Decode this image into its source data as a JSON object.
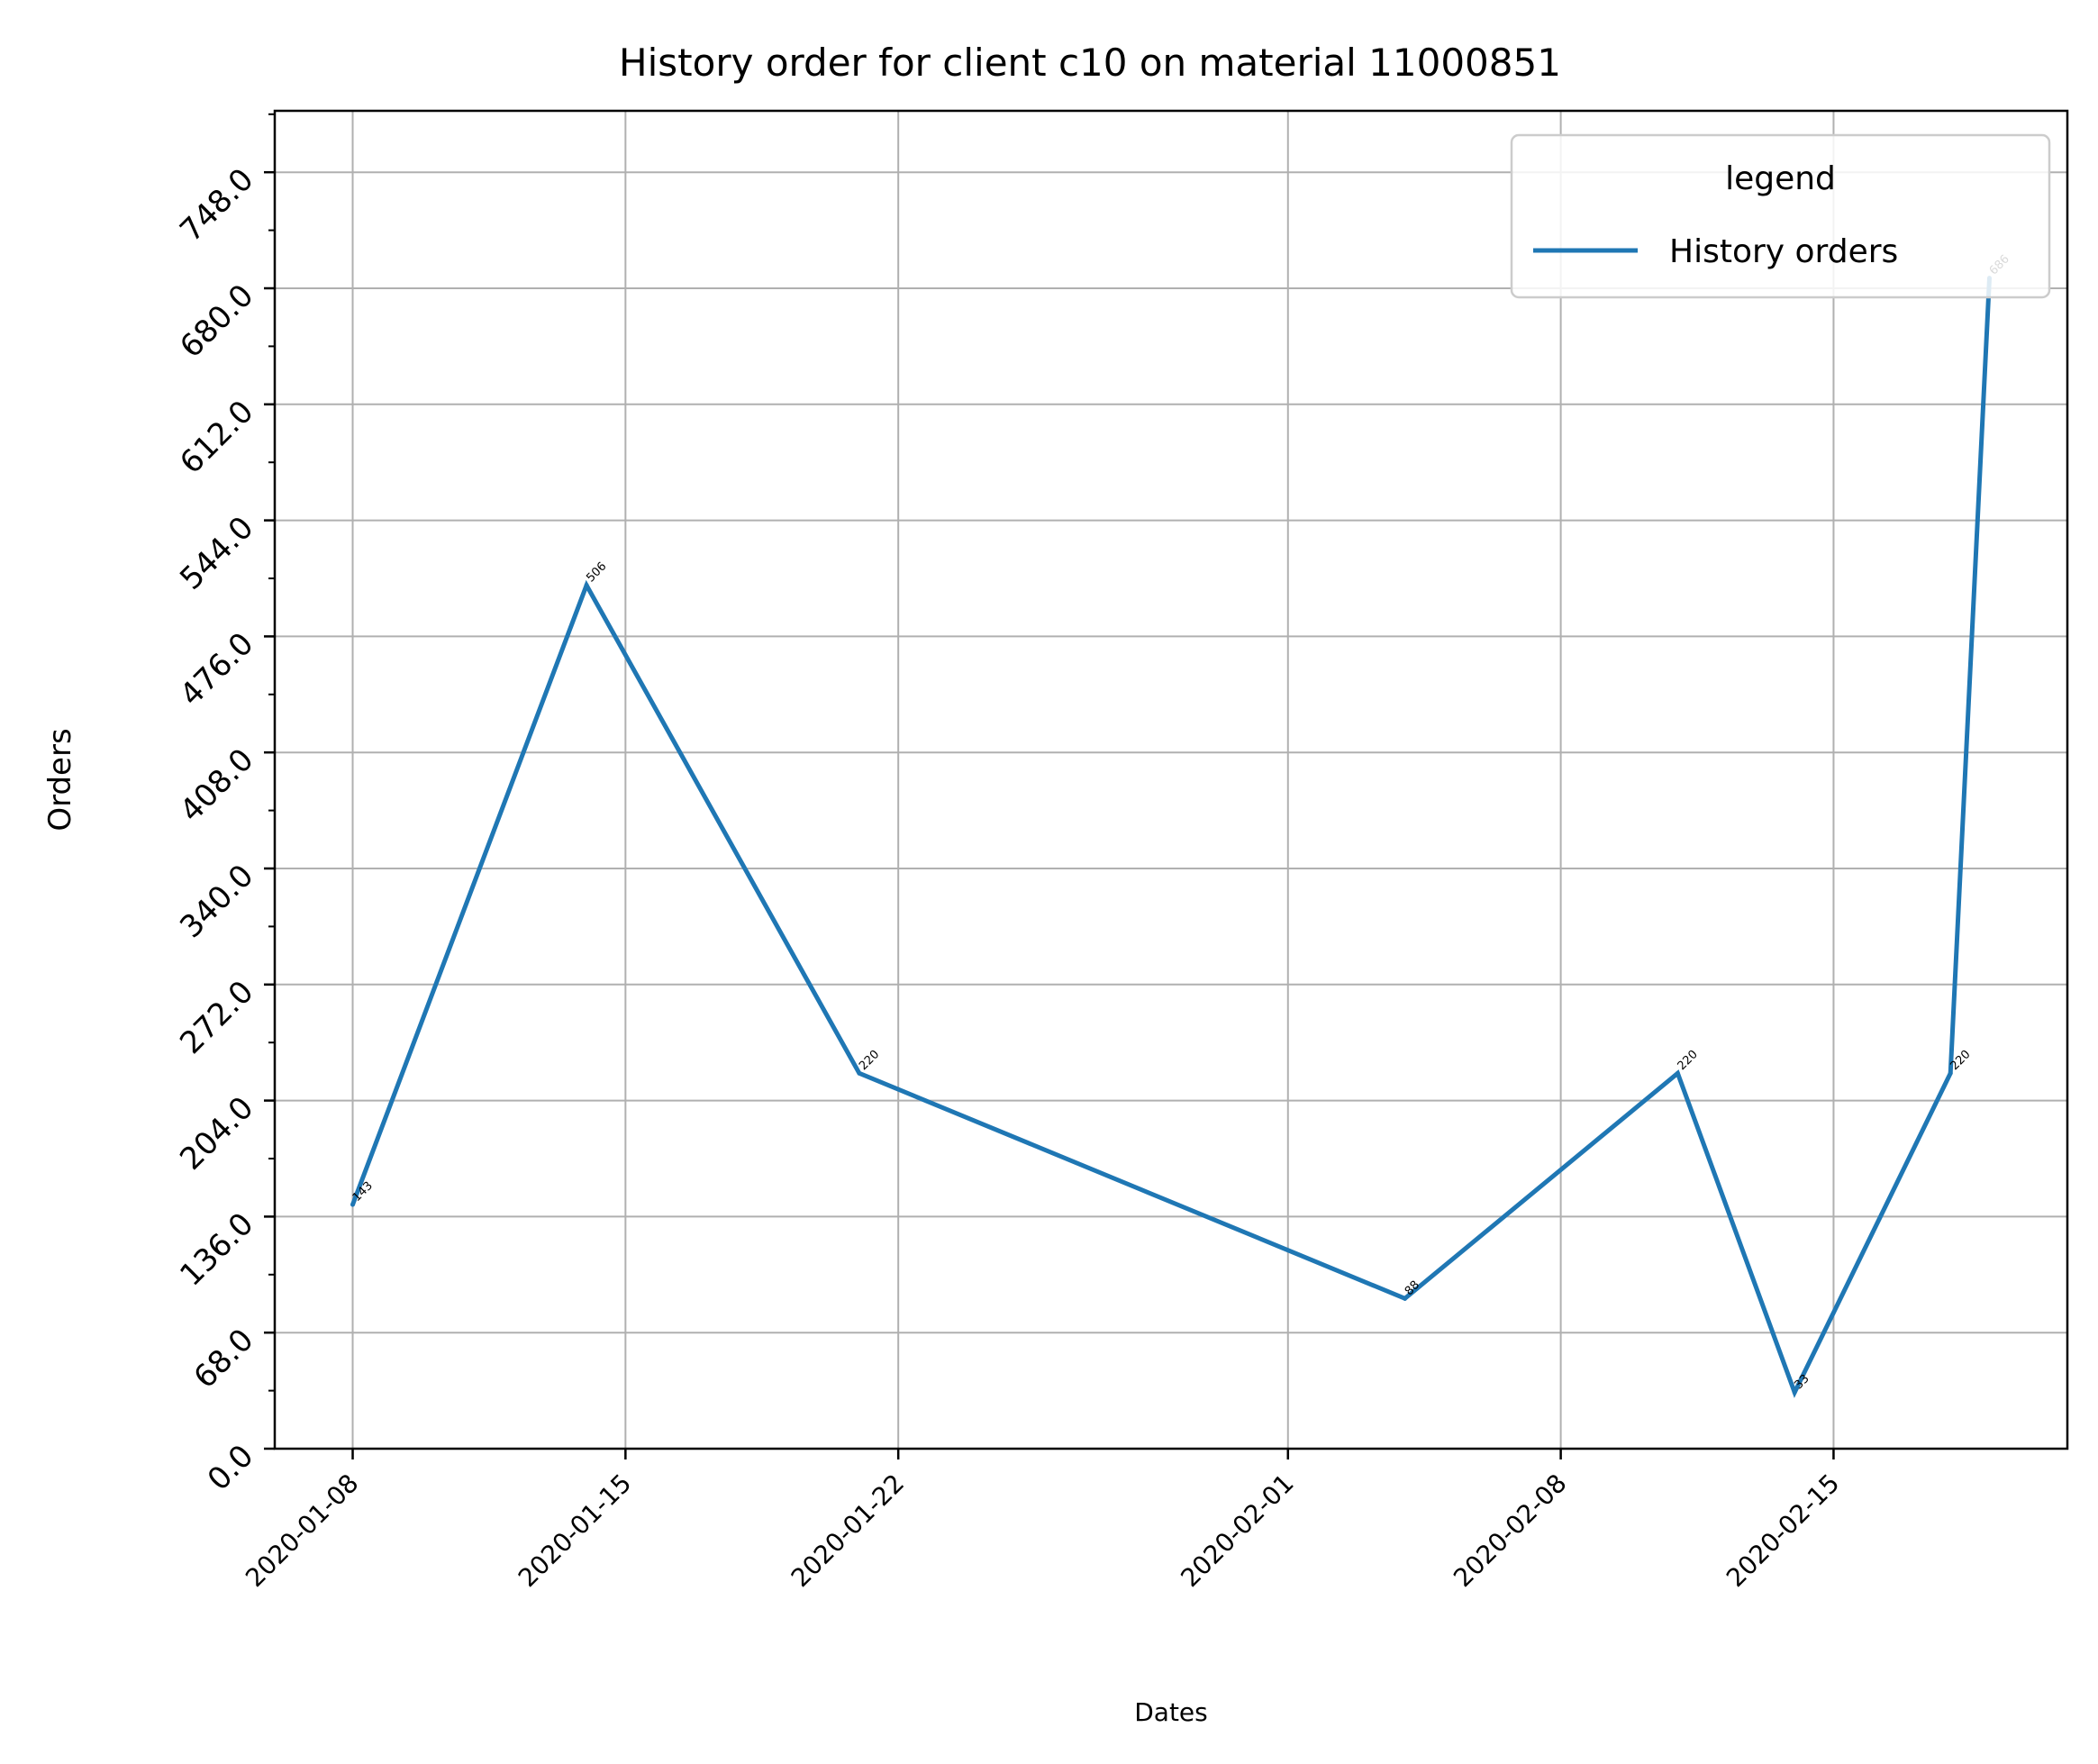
{
  "chart_data": {
    "type": "line",
    "title": "History order for client c10 on material 11000851",
    "xlabel": "Dates",
    "ylabel": "Orders",
    "grid": true,
    "legend": {
      "title": "legend",
      "position": "top-right"
    },
    "x_ticks": [
      "2020-01-08",
      "2020-01-15",
      "2020-01-22",
      "2020-02-01",
      "2020-02-08",
      "2020-02-15"
    ],
    "y_ticks": [
      "0.0",
      "68.0",
      "136.0",
      "204.0",
      "272.0",
      "340.0",
      "408.0",
      "476.0",
      "544.0",
      "612.0",
      "680.0",
      "748.0"
    ],
    "xlim": [
      "2020-01-06",
      "2020-02-21"
    ],
    "ylim": [
      0,
      784
    ],
    "series": [
      {
        "name": "History orders",
        "color": "#1f77b4",
        "points": [
          {
            "x": "2020-01-08",
            "y": 143,
            "label": "143"
          },
          {
            "x": "2020-01-14",
            "y": 506,
            "label": "506"
          },
          {
            "x": "2020-01-21",
            "y": 220,
            "label": "220"
          },
          {
            "x": "2020-02-04",
            "y": 88,
            "label": "88"
          },
          {
            "x": "2020-02-11",
            "y": 220,
            "label": "220"
          },
          {
            "x": "2020-02-14",
            "y": 33,
            "label": "33"
          },
          {
            "x": "2020-02-18",
            "y": 220,
            "label": "220"
          },
          {
            "x": "2020-02-19",
            "y": 686,
            "label": "686"
          }
        ]
      }
    ]
  }
}
